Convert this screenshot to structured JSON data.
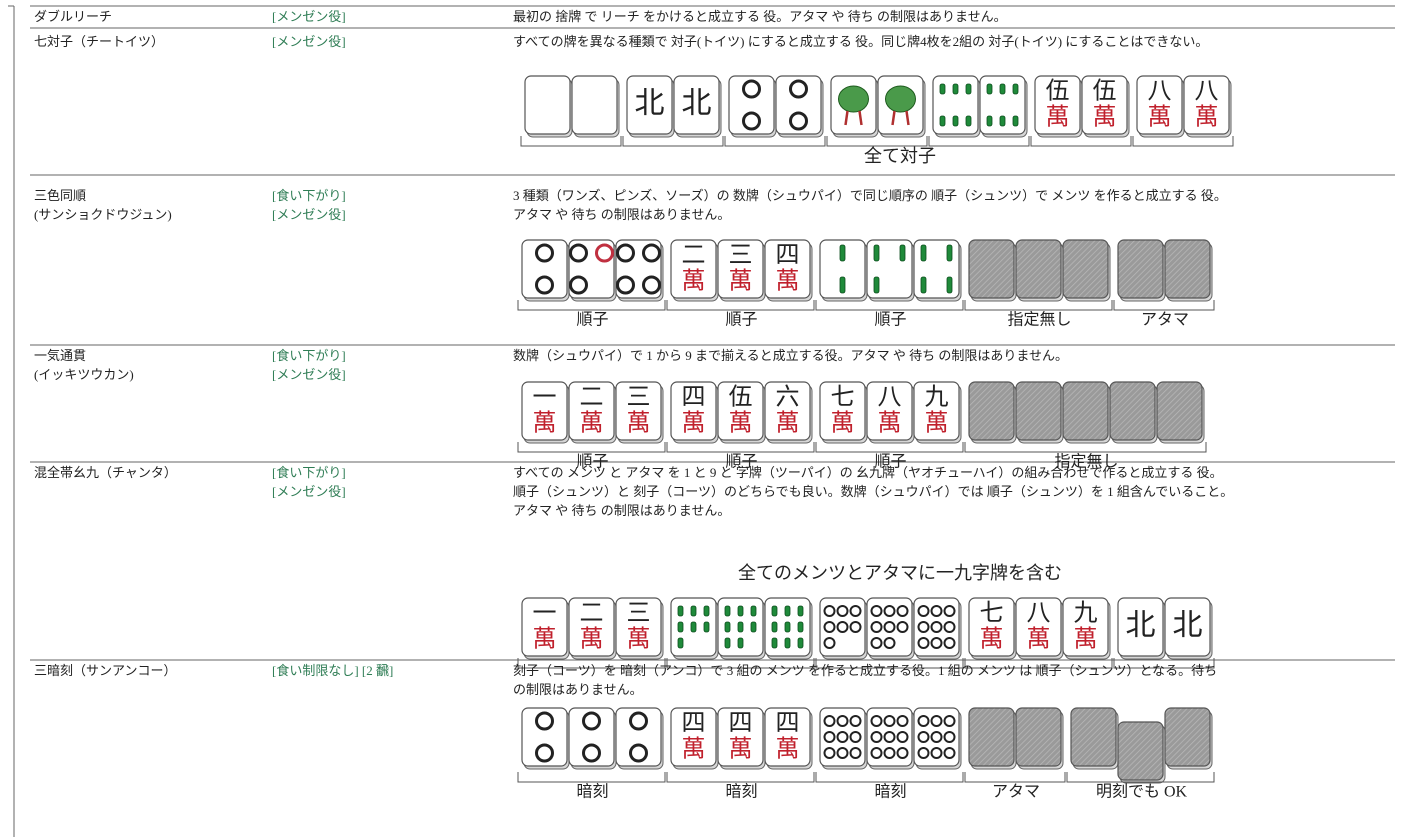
{
  "rows": [
    {
      "name": [
        "ダブルリーチ"
      ],
      "tags": [
        "[メンゼン役]"
      ],
      "description": [
        "最初の 捨牌 で リーチ をかけると成立する 役。アタマ や 待ち の制限はありません。"
      ]
    },
    {
      "name": [
        "七対子（チートイツ）"
      ],
      "tags": [
        "[メンゼン役]"
      ],
      "description": [
        "すべての牌を異なる種類で 対子(トイツ) にすると成立する 役。同じ牌4枚を2組の 対子(トイツ) にすることはできない。"
      ],
      "tiles": [
        [
          "北"
        ],
        [
          "北"
        ],
        [
          "伍",
          "萬"
        ],
        [
          "伍",
          "萬"
        ],
        [
          "八",
          "萬"
        ],
        [
          "八",
          "萬"
        ]
      ],
      "caption": "全て対子"
    },
    {
      "name": [
        "三色同順",
        "(サンショクドウジュン)"
      ],
      "tags": [
        "[食い下がり]",
        "[メンゼン役]"
      ],
      "description": [
        "3 種類（ワンズ、ピンズ、ソーズ）の 数牌（シュウパイ）で同じ順序の 順子（シュンツ）で メンツ を作ると成立する 役。",
        "アタマ や 待ち の制限はありません。"
      ],
      "tiles": [
        [
          "二",
          "萬"
        ],
        [
          "三",
          "萬"
        ],
        [
          "四",
          "萬"
        ]
      ],
      "group_labels": [
        "順子",
        "順子",
        "順子",
        "指定無し",
        "アタマ"
      ]
    },
    {
      "name": [
        "一気通貫",
        "(イッキツウカン)"
      ],
      "tags": [
        "[食い下がり]",
        "[メンゼン役]"
      ],
      "description": [
        "数牌（シュウパイ）で 1 から 9 まで揃えると成立する役。アタマ や 待ち の制限はありません。"
      ],
      "tiles": [
        [
          "一",
          "萬"
        ],
        [
          "二",
          "萬"
        ],
        [
          "三",
          "萬"
        ],
        [
          "四",
          "萬"
        ],
        [
          "伍",
          "萬"
        ],
        [
          "六",
          "萬"
        ],
        [
          "七",
          "萬"
        ],
        [
          "八",
          "萬"
        ],
        [
          "九",
          "萬"
        ]
      ],
      "group_labels": [
        "順子",
        "順子",
        "順子",
        "指定無し"
      ]
    },
    {
      "name": [
        "混全帯幺九（チャンタ）"
      ],
      "tags": [
        "[食い下がり]",
        "[メンゼン役]"
      ],
      "description": [
        "すべての メンツ と アタマ を 1 と 9 と 字牌（ツーパイ）の 幺九牌（ヤオチューハイ）の組み合わせで作ると成立する 役。",
        "順子（シュンツ）と 刻子（コーツ）のどちらでも良い。数牌（シュウパイ）では 順子（シュンツ）を 1 組含んでいること。",
        "アタマ や 待ち の制限はありません。"
      ],
      "caption": "全てのメンツとアタマに一九字牌を含む",
      "tiles": [
        [
          "一",
          "萬"
        ],
        [
          "二",
          "萬"
        ],
        [
          "三",
          "萬"
        ],
        [
          "七",
          "萬"
        ],
        [
          "八",
          "萬"
        ],
        [
          "九",
          "萬"
        ],
        [
          "北"
        ],
        [
          "北"
        ]
      ]
    },
    {
      "name": [
        "三暗刻（サンアンコー）"
      ],
      "tags": [
        "[食い制限なし] [2 飜]"
      ],
      "description": [
        "刻子（コーツ）を 暗刻（アンコ）で 3 組の メンツ を作ると成立する役。1 組の メンツ は 順子（シュンツ）となる。待ち",
        "の制限はありません。"
      ],
      "tiles": [
        [
          "四",
          "萬"
        ],
        [
          "四",
          "萬"
        ],
        [
          "四",
          "萬"
        ]
      ],
      "group_labels": [
        "暗刻",
        "暗刻",
        "暗刻",
        "アタマ",
        "明刻でも OK"
      ]
    }
  ]
}
